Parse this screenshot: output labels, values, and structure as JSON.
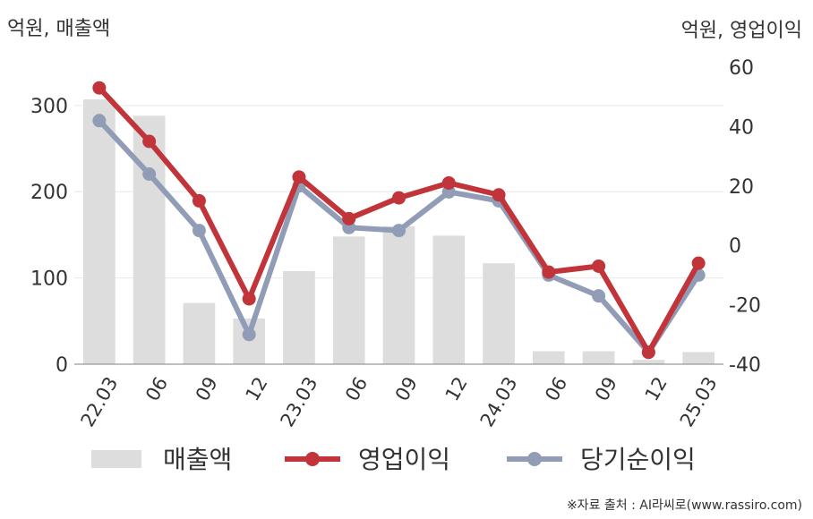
{
  "unit_left": "억원, 매출액",
  "unit_right": "억원, 영업이익",
  "source": "※자료 출처 : AI라씨로(www.rassiro.com)",
  "colors": {
    "bar": "#dddddd",
    "op_profit": "#c0343a",
    "net_income": "#919cb6",
    "grid": "#e8e8e8",
    "axis": "#999999",
    "text": "#333333"
  },
  "chart_data": {
    "type": "bar+line",
    "categories": [
      "22.03",
      "06",
      "09",
      "12",
      "23.03",
      "06",
      "09",
      "12",
      "24.03",
      "06",
      "09",
      "12",
      "25.03"
    ],
    "left_axis": {
      "ticks": [
        0,
        100,
        200,
        300
      ],
      "ylim": [
        0,
        360
      ]
    },
    "right_axis": {
      "ticks": [
        -40,
        -20,
        0,
        20,
        40,
        60
      ],
      "ylim": [
        -40,
        60
      ]
    },
    "grid": true,
    "legend_position": "bottom",
    "series": [
      {
        "name": "매출액",
        "type": "bar",
        "axis": "left",
        "values": [
          307,
          288,
          71,
          53,
          108,
          148,
          160,
          149,
          117,
          15,
          15,
          5,
          14
        ]
      },
      {
        "name": "영업이익",
        "type": "line",
        "axis": "right",
        "values": [
          53,
          35,
          15,
          -18,
          23,
          9,
          16,
          21,
          17,
          -9,
          -7,
          -36,
          -6
        ]
      },
      {
        "name": "당기순이익",
        "type": "line",
        "axis": "right",
        "values": [
          42,
          24,
          5,
          -30,
          20,
          6,
          5,
          18,
          15,
          -10,
          -17,
          -36,
          -10
        ]
      }
    ]
  }
}
